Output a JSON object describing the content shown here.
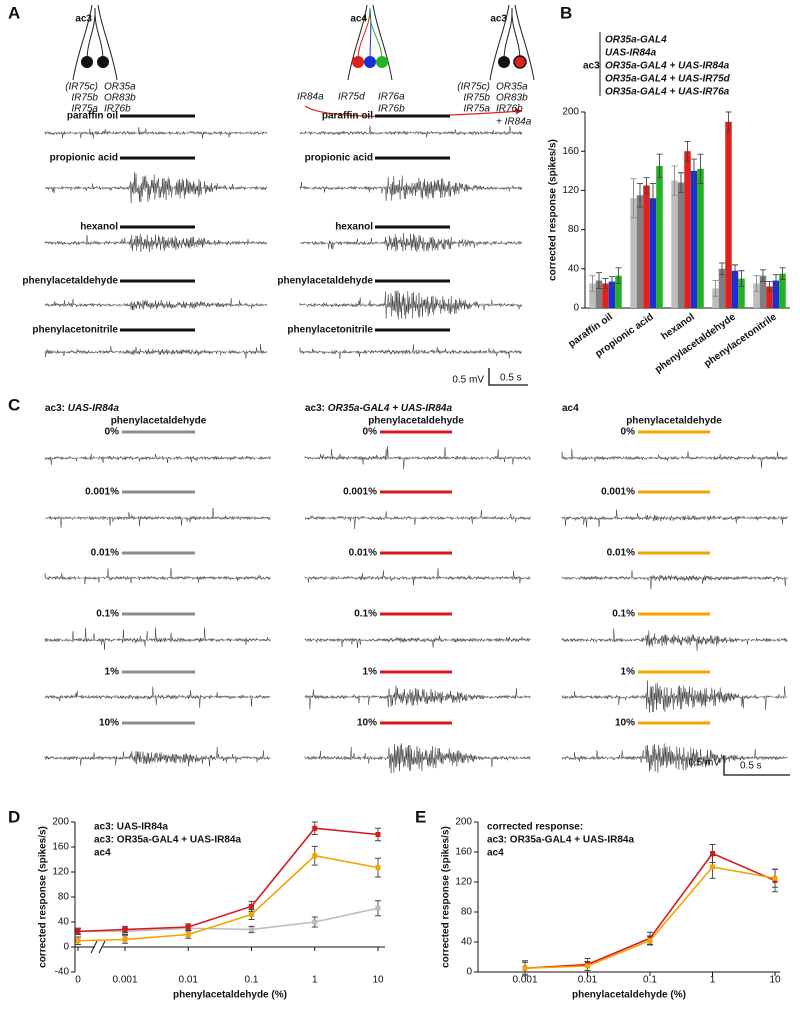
{
  "panel_labels": [
    "A",
    "B",
    "C",
    "D",
    "E"
  ],
  "panel_a": {
    "columns": [
      {
        "sensillum": "ac3",
        "receptors": [
          "(IR75c)",
          "IR75b",
          "IR75a",
          "OR35a",
          "OR83b",
          "IR76b"
        ]
      },
      {
        "sensillum": "ac4",
        "receptors": [
          "IR84a",
          "IR75d",
          "IR76a",
          "IR76b"
        ],
        "receptor_colors": [
          "#e0201b",
          "#1a2fd6",
          "#22b322",
          "#22b322"
        ]
      },
      {
        "sensillum": "ac3",
        "receptors": [
          "(IR75c)",
          "IR75b",
          "IR75a",
          "OR35a",
          "OR83b",
          "IR76b"
        ],
        "added": "+ IR84a",
        "added_color": "#e0201b"
      }
    ],
    "odors": [
      "paraffin oil",
      "propionic acid",
      "hexanol",
      "phenylacetaldehyde",
      "phenylacetonitrile"
    ],
    "scale_voltage": "0.5 mV",
    "scale_time": "0.5 s"
  },
  "panel_c": {
    "columns": [
      {
        "sensillum": "ac3:",
        "genotype": "UAS-IR84a",
        "odor": "phenylacetaldehyde",
        "color": "#8c8c8c"
      },
      {
        "sensillum": "ac3:",
        "genotype": "OR35a-GAL4 + UAS-IR84a",
        "odor": "phenylacetaldehyde",
        "color": "#d7191c"
      },
      {
        "sensillum": "ac4",
        "odor": "phenylacetaldehyde",
        "color": "#f5a300"
      }
    ],
    "concentrations": [
      "0%",
      "0.001%",
      "0.01%",
      "0.1%",
      "1%",
      "10%"
    ],
    "scale_voltage": "0.5 mV",
    "scale_time": "0.5 s"
  },
  "chart_data": [
    {
      "type": "bar",
      "legend_title": "ac3",
      "ylabel": "corrected response (spikes/s)",
      "categories": [
        "paraffin oil",
        "propionic acid",
        "hexanol",
        "phenylacetaldehyde",
        "phenylacetonitrile"
      ],
      "series": [
        {
          "name": "OR35a-GAL4",
          "color": "#bdbdbd",
          "values": [
            25,
            112,
            130,
            20,
            25
          ],
          "errors": [
            8,
            20,
            15,
            8,
            8
          ]
        },
        {
          "name": "UAS-IR84a",
          "color": "#7f7f7f",
          "values": [
            28,
            115,
            128,
            40,
            33
          ],
          "errors": [
            8,
            12,
            10,
            6,
            6
          ]
        },
        {
          "name": "OR35a-GAL4 + UAS-IR84a",
          "color": "#e0201b",
          "values": [
            25,
            125,
            160,
            190,
            22
          ],
          "errors": [
            5,
            8,
            10,
            10,
            5
          ]
        },
        {
          "name": "OR35a-GAL4 + UAS-IR75d",
          "color": "#1a2fd6",
          "values": [
            27,
            112,
            140,
            38,
            28
          ],
          "errors": [
            5,
            15,
            12,
            6,
            6
          ]
        },
        {
          "name": "OR35a-GAL4 + UAS-IR76a",
          "color": "#22b322",
          "values": [
            33,
            145,
            142,
            30,
            35
          ],
          "errors": [
            8,
            12,
            15,
            8,
            6
          ]
        }
      ],
      "ylim": [
        0,
        200
      ],
      "yticks": [
        0,
        40,
        80,
        120,
        160,
        200
      ]
    },
    {
      "type": "line",
      "xlabel": "phenylacetaldehyde (%)",
      "ylabel": "corrected response (spikes/s)",
      "categories": [
        "0",
        "0.001",
        "0.01",
        "0.1",
        "1",
        "10"
      ],
      "series": [
        {
          "name": "ac3: UAS-IR84a",
          "color": "#bdbdbd",
          "values": [
            25,
            25,
            30,
            28,
            40,
            62
          ],
          "errors": [
            5,
            5,
            4,
            5,
            8,
            12
          ]
        },
        {
          "name": "ac3: OR35a-GAL4 + UAS-IR84a",
          "color": "#d7191c",
          "values": [
            25,
            28,
            32,
            65,
            190,
            180
          ],
          "errors": [
            5,
            5,
            5,
            8,
            10,
            10
          ]
        },
        {
          "name": "ac4",
          "color": "#f5a300",
          "values": [
            10,
            12,
            20,
            52,
            146,
            127
          ],
          "errors": [
            6,
            6,
            6,
            8,
            15,
            15
          ]
        }
      ],
      "ylim": [
        -40,
        200
      ],
      "yticks": [
        -40,
        0,
        40,
        80,
        120,
        160,
        200
      ],
      "axis_break": true
    },
    {
      "type": "line",
      "legend_title": "corrected response:",
      "xlabel": "phenylacetaldehyde (%)",
      "ylabel": "corrected response (spikes/s)",
      "categories": [
        "0.001",
        "0.01",
        "0.1",
        "1",
        "10"
      ],
      "series": [
        {
          "name": "ac3: OR35a-GAL4 + UAS-IR84a",
          "color": "#d7191c",
          "values": [
            5,
            10,
            45,
            158,
            122
          ],
          "errors": [
            10,
            8,
            8,
            12,
            15
          ]
        },
        {
          "name": "ac4",
          "color": "#f5a300",
          "values": [
            5,
            8,
            42,
            140,
            125
          ],
          "errors": [
            8,
            6,
            6,
            15,
            12
          ]
        }
      ],
      "ylim": [
        0,
        200
      ],
      "yticks": [
        0,
        40,
        80,
        120,
        160,
        200
      ]
    }
  ]
}
